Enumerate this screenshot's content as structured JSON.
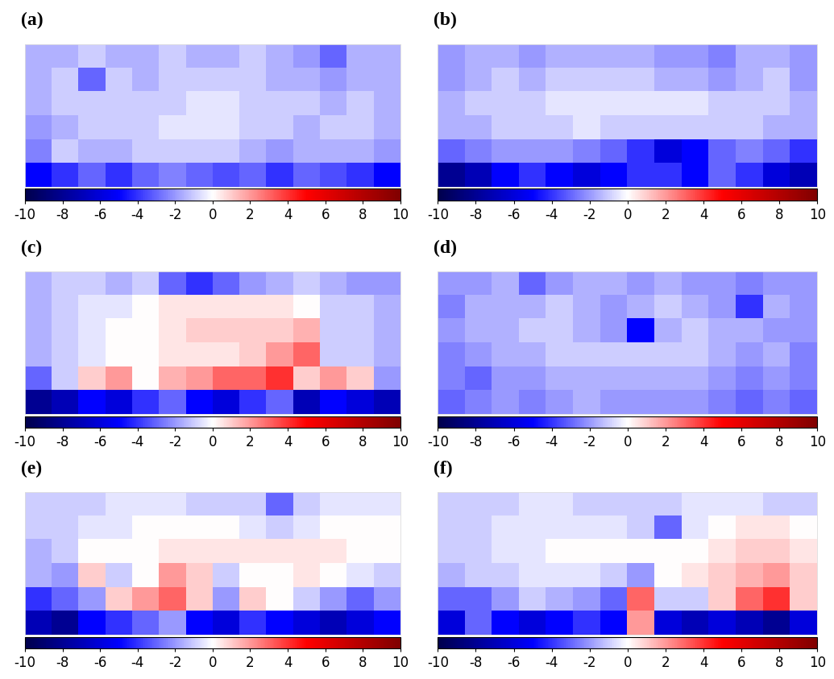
{
  "chart_data": [
    {
      "type": "heatmap",
      "title": "(a)",
      "tick_labels": false,
      "colorbar": {
        "range": [
          -10,
          10
        ],
        "ticks": [
          -10,
          -8,
          -6,
          -4,
          -2,
          0,
          2,
          4,
          6,
          8,
          10
        ]
      },
      "cells": [
        [
          -1.5,
          -1.5,
          -1,
          -1.5,
          -1.5,
          -1,
          -1.5,
          -1.5,
          -1,
          -1.5,
          -2,
          -3,
          -1.5,
          -1.5
        ],
        [
          -1.5,
          -1,
          -3,
          -1,
          -1.5,
          -1,
          -1,
          -1,
          -1,
          -1.5,
          -1.5,
          -2,
          -1.5,
          -1.5
        ],
        [
          -1.5,
          -1,
          -1,
          -1,
          -1,
          -1,
          -0.5,
          -0.5,
          -1,
          -1,
          -1,
          -1.5,
          -1,
          -1.5
        ],
        [
          -2,
          -1.5,
          -1,
          -1,
          -1,
          -0.5,
          -0.5,
          -0.5,
          -1,
          -1,
          -1.5,
          -1,
          -1,
          -1.5
        ],
        [
          -2.5,
          -1,
          -1.5,
          -1.5,
          -1,
          -1,
          -1,
          -1,
          -1.5,
          -2,
          -1.5,
          -1.5,
          -1.5,
          -2
        ],
        [
          -5,
          -4,
          -3,
          -4,
          -3,
          -2.5,
          -3,
          -3.5,
          -3,
          -4,
          -3,
          -3.5,
          -4,
          -5
        ]
      ]
    },
    {
      "type": "heatmap",
      "title": "(b)",
      "tick_labels": false,
      "colorbar": {
        "range": [
          -10,
          10
        ],
        "ticks": [
          -10,
          -8,
          -6,
          -4,
          -2,
          0,
          2,
          4,
          6,
          8,
          10
        ]
      },
      "cells": [
        [
          -2,
          -1.5,
          -1.5,
          -2,
          -1.5,
          -1.5,
          -1.5,
          -1.5,
          -2,
          -2,
          -2.5,
          -1.5,
          -1.5,
          -2
        ],
        [
          -2,
          -1.5,
          -1,
          -1.5,
          -1,
          -1,
          -1,
          -1,
          -1.5,
          -1.5,
          -2,
          -1.5,
          -1,
          -2
        ],
        [
          -1.5,
          -1,
          -1,
          -1,
          -0.5,
          -0.5,
          -0.5,
          -0.5,
          -0.5,
          -0.5,
          -1,
          -1,
          -1,
          -1.5
        ],
        [
          -1.5,
          -1.5,
          -1,
          -1,
          -1,
          -0.5,
          -1,
          -1,
          -1,
          -1,
          -1,
          -1,
          -1.5,
          -1.5
        ],
        [
          -3,
          -2.5,
          -2,
          -2,
          -2,
          -2.5,
          -3,
          -4,
          -6,
          -5,
          -3,
          -2.5,
          -3,
          -4
        ],
        [
          -8,
          -7,
          -5,
          -4,
          -5,
          -6,
          -5,
          -4,
          -4,
          -5,
          -3,
          -4,
          -6,
          -7
        ]
      ]
    },
    {
      "type": "heatmap",
      "title": "(c)",
      "tick_labels": false,
      "colorbar": {
        "range": [
          -10,
          10
        ],
        "ticks": [
          -10,
          -8,
          -6,
          -4,
          -2,
          0,
          2,
          4,
          6,
          8,
          10
        ]
      },
      "cells": [
        [
          -1.5,
          -1,
          -1,
          -1.5,
          -1,
          -3,
          -4,
          -3,
          -2,
          -1.5,
          -1,
          -1.5,
          -2,
          -2
        ],
        [
          -1.5,
          -1,
          -0.5,
          -0.5,
          0,
          0.5,
          0.5,
          0.5,
          0.5,
          0.5,
          0,
          -1,
          -1,
          -1.5
        ],
        [
          -1.5,
          -1,
          -0.5,
          0,
          0,
          0.5,
          1,
          1,
          1,
          1,
          1.5,
          -1,
          -1,
          -1.5
        ],
        [
          -1.5,
          -1,
          -0.5,
          0,
          0,
          0.5,
          0.5,
          0.5,
          1,
          2,
          3,
          -1,
          -1,
          -1.5
        ],
        [
          -3,
          -1,
          1,
          2,
          0,
          1.5,
          2,
          3,
          3,
          4,
          1,
          2,
          1,
          -2
        ],
        [
          -8,
          -7,
          -5,
          -6,
          -4,
          -3,
          -5,
          -6,
          -4,
          -3,
          -7,
          -5,
          -6,
          -7
        ]
      ]
    },
    {
      "type": "heatmap",
      "title": "(d)",
      "tick_labels": false,
      "colorbar": {
        "range": [
          -10,
          10
        ],
        "ticks": [
          -10,
          -8,
          -6,
          -4,
          -2,
          0,
          2,
          4,
          6,
          8,
          10
        ]
      },
      "cells": [
        [
          -2,
          -2,
          -1.5,
          -3,
          -2,
          -1.5,
          -1.5,
          -2,
          -1.5,
          -2,
          -2,
          -2.5,
          -2,
          -2
        ],
        [
          -2.5,
          -1.5,
          -1.5,
          -1.5,
          -1,
          -1.5,
          -2,
          -1.5,
          -1,
          -1.5,
          -2,
          -4,
          -1.5,
          -2
        ],
        [
          -2,
          -1.5,
          -1.5,
          -1,
          -1,
          -1.5,
          -2,
          -5,
          -1.5,
          -1,
          -1.5,
          -1.5,
          -2,
          -2
        ],
        [
          -2.5,
          -2,
          -1.5,
          -1.5,
          -1,
          -1,
          -1,
          -1,
          -1,
          -1,
          -1.5,
          -2,
          -1.5,
          -2.5
        ],
        [
          -2.5,
          -3,
          -2,
          -2,
          -1.5,
          -1.5,
          -1.5,
          -1.5,
          -1.5,
          -1.5,
          -2,
          -2.5,
          -2,
          -2.5
        ],
        [
          -3,
          -2.5,
          -2,
          -2.5,
          -2,
          -1.5,
          -2,
          -2,
          -2,
          -2,
          -2.5,
          -3,
          -2.5,
          -3
        ]
      ]
    },
    {
      "type": "heatmap",
      "title": "(e)",
      "tick_labels": false,
      "colorbar": {
        "range": [
          -10,
          10
        ],
        "ticks": [
          -10,
          -8,
          -6,
          -4,
          -2,
          0,
          2,
          4,
          6,
          8,
          10
        ]
      },
      "cells": [
        [
          -1,
          -1,
          -1,
          -0.5,
          -0.5,
          -0.5,
          -1,
          -1,
          -1,
          -3,
          -1,
          -0.5,
          -0.5,
          -0.5
        ],
        [
          -1,
          -1,
          -0.5,
          -0.5,
          0,
          0,
          0,
          0,
          -0.5,
          -1,
          -0.5,
          0,
          0,
          0
        ],
        [
          -1.5,
          -1,
          0,
          0,
          0,
          0.5,
          0.5,
          0.5,
          0.5,
          0.5,
          0.5,
          0.5,
          0,
          0
        ],
        [
          -1.5,
          -2,
          1,
          -1,
          0,
          2,
          1,
          -1,
          0,
          0,
          0.5,
          0,
          -0.5,
          -1
        ],
        [
          -4,
          -3,
          -2,
          1,
          2,
          3,
          1,
          -2,
          1,
          0,
          -1,
          -2,
          -3,
          -2
        ],
        [
          -7,
          -8,
          -5,
          -4,
          -3,
          -2,
          -5,
          -6,
          -4,
          -5,
          -6,
          -7,
          -6,
          -5
        ]
      ]
    },
    {
      "type": "heatmap",
      "title": "(f)",
      "tick_labels": false,
      "colorbar": {
        "range": [
          -10,
          10
        ],
        "ticks": [
          -10,
          -8,
          -6,
          -4,
          -2,
          0,
          2,
          4,
          6,
          8,
          10
        ]
      },
      "cells": [
        [
          -1,
          -1,
          -1,
          -0.5,
          -0.5,
          -1,
          -1,
          -1,
          -1,
          -0.5,
          -0.5,
          -0.5,
          -1,
          -1
        ],
        [
          -1,
          -1,
          -0.5,
          -0.5,
          -0.5,
          -0.5,
          -0.5,
          -1,
          -3,
          -0.5,
          0,
          0.5,
          0.5,
          0
        ],
        [
          -1,
          -1,
          -0.5,
          -0.5,
          0,
          0,
          0,
          0,
          0,
          0,
          0.5,
          1,
          1,
          0.5
        ],
        [
          -1.5,
          -1,
          -1,
          -0.5,
          -0.5,
          -0.5,
          -1,
          -2,
          0,
          0.5,
          1,
          1.5,
          2,
          1
        ],
        [
          -3,
          -3,
          -2,
          -1,
          -1.5,
          -2,
          -3,
          3,
          -1,
          -1,
          1,
          3,
          4,
          1
        ],
        [
          -6,
          -3,
          -5,
          -6,
          -5,
          -4,
          -5,
          2,
          -6,
          -7,
          -6,
          -7,
          -8,
          -6
        ]
      ]
    }
  ]
}
